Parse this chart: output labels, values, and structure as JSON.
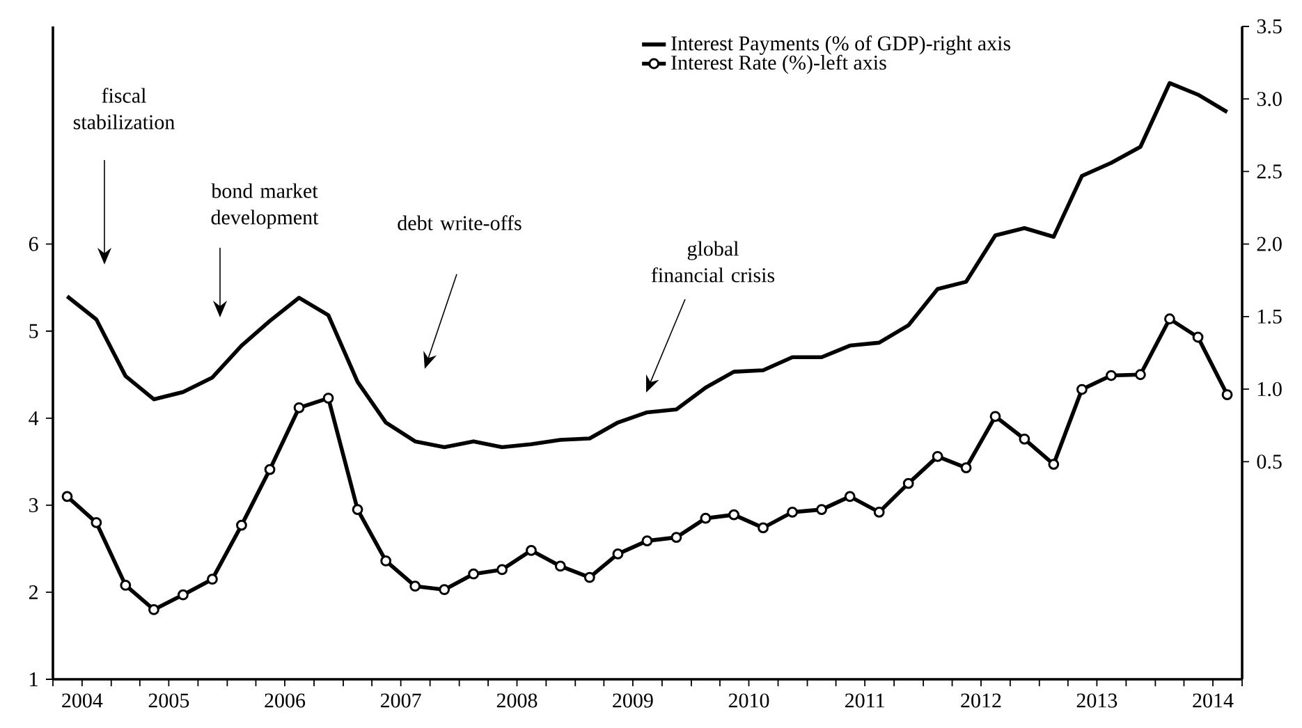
{
  "chart_data": {
    "type": "line",
    "x": [
      "2004-08-15",
      "2004-11-15",
      "2005-02-15",
      "2005-05-15",
      "2005-08-15",
      "2005-11-15",
      "2006-02-15",
      "2006-05-15",
      "2006-08-15",
      "2006-11-15",
      "2007-02-15",
      "2007-05-15",
      "2007-08-15",
      "2007-11-15",
      "2008-02-15",
      "2008-05-15",
      "2008-08-15",
      "2008-11-15",
      "2009-02-15",
      "2009-05-15",
      "2009-08-15",
      "2009-11-15",
      "2010-02-15",
      "2010-05-15",
      "2010-08-15",
      "2010-11-15",
      "2011-02-15",
      "2011-05-15",
      "2011-08-15",
      "2011-11-15",
      "2012-02-15",
      "2012-05-15",
      "2012-08-15",
      "2012-11-15",
      "2013-02-15",
      "2013-05-15",
      "2013-08-15",
      "2013-11-15",
      "2014-02-15",
      "2014-05-15",
      "2014-08-15"
    ],
    "series": [
      {
        "name": "Interest Payments (% of GDP)-right axis",
        "color": "#000000",
        "axis": "y2",
        "marker": "none",
        "values": [
          1.64,
          1.48,
          1.09,
          0.93,
          0.98,
          1.08,
          1.3,
          1.47,
          1.63,
          1.51,
          1.05,
          0.77,
          0.64,
          0.6,
          0.64,
          0.6,
          0.62,
          0.65,
          0.66,
          0.77,
          0.84,
          0.86,
          1.01,
          1.12,
          1.13,
          1.22,
          1.22,
          1.3,
          1.32,
          1.44,
          1.69,
          1.74,
          2.06,
          2.11,
          2.05,
          2.47,
          2.56,
          2.67,
          3.11,
          3.03,
          2.91
        ]
      },
      {
        "name": "Interest Rate (%)-left axis",
        "color": "#000000",
        "axis": "y",
        "marker": "circle",
        "values": [
          3.1,
          2.8,
          2.08,
          1.8,
          1.97,
          2.15,
          2.77,
          3.41,
          4.12,
          4.23,
          2.95,
          2.36,
          2.07,
          2.03,
          2.21,
          2.26,
          2.48,
          2.3,
          2.17,
          2.44,
          2.59,
          2.63,
          2.85,
          2.89,
          2.74,
          2.92,
          2.95,
          3.1,
          2.92,
          3.25,
          3.56,
          3.43,
          4.02,
          3.76,
          3.47,
          4.33,
          4.49,
          4.5,
          5.14,
          4.93,
          4.27
        ]
      }
    ],
    "xlim": [
      "2004-07-01",
      "2014-10-01"
    ],
    "xticks": [
      {
        "value": "2004-07-01",
        "label": null
      },
      {
        "value": "2004-10-01",
        "label": "2004"
      },
      {
        "value": "2005-01-01",
        "label": null
      },
      {
        "value": "2005-04-01",
        "label": null
      },
      {
        "value": "2005-07-01",
        "label": "2005"
      },
      {
        "value": "2005-10-01",
        "label": null
      },
      {
        "value": "2006-01-01",
        "label": null
      },
      {
        "value": "2006-04-01",
        "label": null
      },
      {
        "value": "2006-07-01",
        "label": "2006"
      },
      {
        "value": "2006-10-01",
        "label": null
      },
      {
        "value": "2007-01-01",
        "label": null
      },
      {
        "value": "2007-04-01",
        "label": null
      },
      {
        "value": "2007-07-01",
        "label": "2007"
      },
      {
        "value": "2007-10-01",
        "label": null
      },
      {
        "value": "2008-01-01",
        "label": null
      },
      {
        "value": "2008-04-01",
        "label": null
      },
      {
        "value": "2008-07-01",
        "label": "2008"
      },
      {
        "value": "2008-10-01",
        "label": null
      },
      {
        "value": "2009-01-01",
        "label": null
      },
      {
        "value": "2009-04-01",
        "label": null
      },
      {
        "value": "2009-07-01",
        "label": "2009"
      },
      {
        "value": "2009-10-01",
        "label": null
      },
      {
        "value": "2010-01-01",
        "label": null
      },
      {
        "value": "2010-04-01",
        "label": null
      },
      {
        "value": "2010-07-01",
        "label": "2010"
      },
      {
        "value": "2010-10-01",
        "label": null
      },
      {
        "value": "2011-01-01",
        "label": null
      },
      {
        "value": "2011-04-01",
        "label": null
      },
      {
        "value": "2011-07-01",
        "label": "2011"
      },
      {
        "value": "2011-10-01",
        "label": null
      },
      {
        "value": "2012-01-01",
        "label": null
      },
      {
        "value": "2012-04-01",
        "label": null
      },
      {
        "value": "2012-07-01",
        "label": "2012"
      },
      {
        "value": "2012-10-01",
        "label": null
      },
      {
        "value": "2013-01-01",
        "label": null
      },
      {
        "value": "2013-04-01",
        "label": null
      },
      {
        "value": "2013-07-01",
        "label": "2013"
      },
      {
        "value": "2013-10-01",
        "label": null
      },
      {
        "value": "2014-01-01",
        "label": null
      },
      {
        "value": "2014-04-01",
        "label": null
      },
      {
        "value": "2014-07-01",
        "label": "2014"
      },
      {
        "value": "2014-10-01",
        "label": null
      }
    ],
    "ylim": [
      1,
      8.5
    ],
    "yticks": [
      1,
      2,
      3,
      4,
      5,
      6
    ],
    "y2lim": [
      -1,
      3.5
    ],
    "y2ticks": [
      0.5,
      {
        "value": 1,
        "label": "1.0"
      },
      1.5,
      {
        "value": 2,
        "label": "2.0"
      },
      2.5,
      {
        "value": 3,
        "label": "3.0"
      },
      3.5
    ],
    "legend": "top right",
    "annotations": [
      "fiscal stabilization",
      "bond market development",
      "debt write-offs",
      "global financial crisis"
    ]
  }
}
